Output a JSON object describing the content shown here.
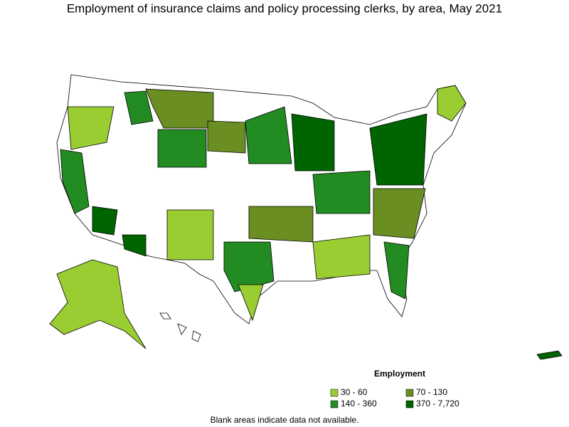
{
  "title": "Employment of insurance claims and policy processing clerks, by area, May 2021",
  "legend": {
    "title": "Employment",
    "items": [
      {
        "label": "30 - 60",
        "color": "#9acd32"
      },
      {
        "label": "70 - 130",
        "color": "#6b8e23"
      },
      {
        "label": "140 - 360",
        "color": "#228b22"
      },
      {
        "label": "370 - 7,720",
        "color": "#006400"
      }
    ]
  },
  "footnote": "Blank areas indicate data not available."
}
